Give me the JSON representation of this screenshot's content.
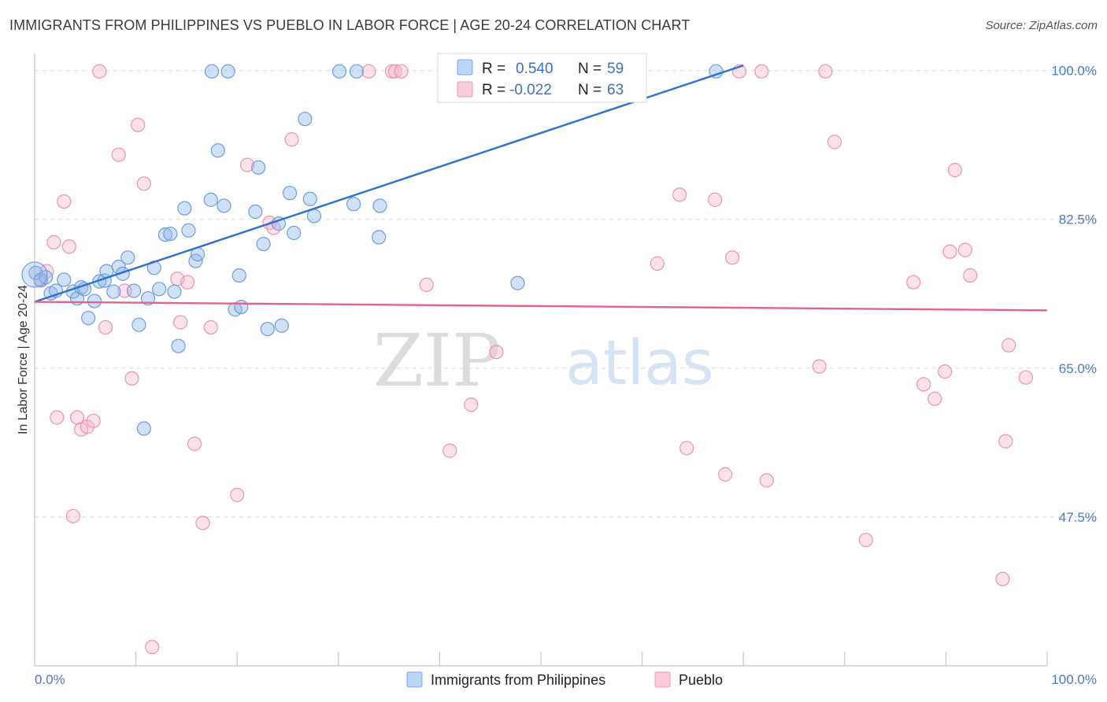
{
  "title": "IMMIGRANTS FROM PHILIPPINES VS PUEBLO IN LABOR FORCE | AGE 20-24 CORRELATION CHART",
  "source": "Source: ZipAtlas.com",
  "chart_data": {
    "type": "scatter",
    "ylabel": "In Labor Force | Age 20-24",
    "xlabel": "",
    "xlim": [
      0,
      100
    ],
    "ylim": [
      30,
      102
    ],
    "x_tick_labels": [
      "0.0%",
      "100.0%"
    ],
    "y_ticks": [
      47.5,
      65.0,
      82.5,
      100.0
    ],
    "y_tick_labels": [
      "47.5%",
      "65.0%",
      "82.5%",
      "100.0%"
    ],
    "watermark": {
      "zip": "ZIP",
      "atlas": "atlas"
    },
    "legend": {
      "r_label": "R =",
      "n_label": "N =",
      "entries": [
        {
          "r": "0.540",
          "n": "59"
        },
        {
          "r": "-0.022",
          "n": "63"
        }
      ]
    },
    "series": [
      {
        "name": "Immigrants from Philippines",
        "color": "#8fb4e8",
        "stroke": "#6f9ddd",
        "trend": {
          "x": [
            0,
            70
          ],
          "y": [
            72.8,
            100.6
          ]
        },
        "trend_color": "#2f6fd0",
        "points": [
          [
            0.1,
            76.2
          ],
          [
            0.6,
            75.4
          ],
          [
            1.1,
            75.7
          ],
          [
            1.6,
            73.8
          ],
          [
            2.1,
            74.1
          ],
          [
            2.9,
            75.4
          ],
          [
            3.8,
            74.0
          ],
          [
            4.2,
            73.2
          ],
          [
            4.6,
            74.5
          ],
          [
            4.9,
            74.3
          ],
          [
            5.3,
            70.9
          ],
          [
            5.9,
            72.9
          ],
          [
            6.4,
            75.2
          ],
          [
            6.9,
            75.3
          ],
          [
            7.1,
            76.4
          ],
          [
            7.8,
            74.0
          ],
          [
            8.3,
            76.9
          ],
          [
            8.7,
            76.1
          ],
          [
            9.2,
            78.0
          ],
          [
            9.8,
            74.1
          ],
          [
            10.3,
            70.1
          ],
          [
            10.8,
            57.9
          ],
          [
            11.2,
            73.2
          ],
          [
            11.8,
            76.8
          ],
          [
            12.3,
            74.3
          ],
          [
            12.9,
            80.7
          ],
          [
            13.4,
            80.8
          ],
          [
            13.8,
            74.0
          ],
          [
            14.2,
            67.6
          ],
          [
            14.8,
            83.8
          ],
          [
            15.2,
            81.2
          ],
          [
            15.9,
            77.6
          ],
          [
            16.1,
            78.4
          ],
          [
            17.4,
            84.8
          ],
          [
            17.5,
            99.9
          ],
          [
            18.1,
            90.6
          ],
          [
            18.7,
            84.1
          ],
          [
            19.1,
            99.9
          ],
          [
            19.8,
            71.9
          ],
          [
            20.2,
            75.9
          ],
          [
            20.4,
            72.2
          ],
          [
            21.8,
            83.4
          ],
          [
            22.1,
            88.6
          ],
          [
            22.6,
            79.6
          ],
          [
            23.0,
            69.6
          ],
          [
            24.1,
            82.0
          ],
          [
            24.4,
            70.0
          ],
          [
            25.2,
            85.6
          ],
          [
            25.6,
            80.9
          ],
          [
            26.7,
            94.3
          ],
          [
            27.2,
            84.9
          ],
          [
            27.6,
            82.9
          ],
          [
            30.1,
            99.9
          ],
          [
            31.5,
            84.3
          ],
          [
            31.8,
            99.9
          ],
          [
            34.0,
            80.4
          ],
          [
            34.1,
            84.1
          ],
          [
            47.7,
            75.0
          ],
          [
            67.3,
            99.9
          ]
        ]
      },
      {
        "name": "Pueblo",
        "color": "#f5b8cc",
        "stroke": "#ec93b0",
        "trend": {
          "x": [
            0,
            100
          ],
          "y": [
            72.8,
            71.8
          ]
        },
        "trend_color": "#e0658e",
        "points": [
          [
            0.6,
            75.3
          ],
          [
            1.2,
            76.4
          ],
          [
            1.9,
            79.8
          ],
          [
            2.2,
            59.2
          ],
          [
            2.9,
            84.6
          ],
          [
            3.4,
            79.3
          ],
          [
            3.8,
            47.6
          ],
          [
            4.2,
            59.2
          ],
          [
            4.6,
            57.8
          ],
          [
            5.2,
            58.1
          ],
          [
            5.8,
            58.8
          ],
          [
            6.4,
            99.9
          ],
          [
            7.0,
            69.8
          ],
          [
            8.3,
            90.1
          ],
          [
            8.9,
            74.1
          ],
          [
            9.6,
            63.8
          ],
          [
            10.2,
            93.6
          ],
          [
            10.8,
            86.7
          ],
          [
            11.6,
            32.2
          ],
          [
            14.1,
            75.5
          ],
          [
            14.4,
            70.4
          ],
          [
            15.1,
            75.1
          ],
          [
            15.8,
            56.1
          ],
          [
            16.6,
            46.8
          ],
          [
            17.4,
            69.8
          ],
          [
            20.0,
            50.1
          ],
          [
            21.0,
            88.9
          ],
          [
            23.2,
            82.1
          ],
          [
            23.6,
            81.5
          ],
          [
            25.4,
            91.9
          ],
          [
            33.0,
            99.9
          ],
          [
            35.3,
            99.9
          ],
          [
            35.6,
            99.9
          ],
          [
            36.2,
            99.9
          ],
          [
            38.7,
            74.8
          ],
          [
            41.0,
            55.3
          ],
          [
            43.1,
            60.7
          ],
          [
            45.6,
            66.9
          ],
          [
            61.5,
            77.3
          ],
          [
            63.7,
            85.4
          ],
          [
            64.4,
            55.6
          ],
          [
            67.2,
            84.8
          ],
          [
            68.2,
            52.5
          ],
          [
            68.9,
            78.0
          ],
          [
            69.6,
            99.9
          ],
          [
            71.8,
            99.9
          ],
          [
            72.3,
            51.8
          ],
          [
            77.5,
            65.2
          ],
          [
            78.1,
            99.9
          ],
          [
            79.0,
            91.6
          ],
          [
            82.1,
            44.8
          ],
          [
            86.8,
            75.1
          ],
          [
            87.8,
            63.1
          ],
          [
            88.9,
            61.4
          ],
          [
            89.9,
            64.6
          ],
          [
            90.4,
            78.7
          ],
          [
            90.9,
            88.3
          ],
          [
            91.9,
            78.9
          ],
          [
            92.4,
            75.9
          ],
          [
            95.6,
            40.2
          ],
          [
            95.9,
            56.4
          ],
          [
            96.2,
            67.7
          ],
          [
            97.9,
            63.9
          ]
        ]
      }
    ]
  }
}
